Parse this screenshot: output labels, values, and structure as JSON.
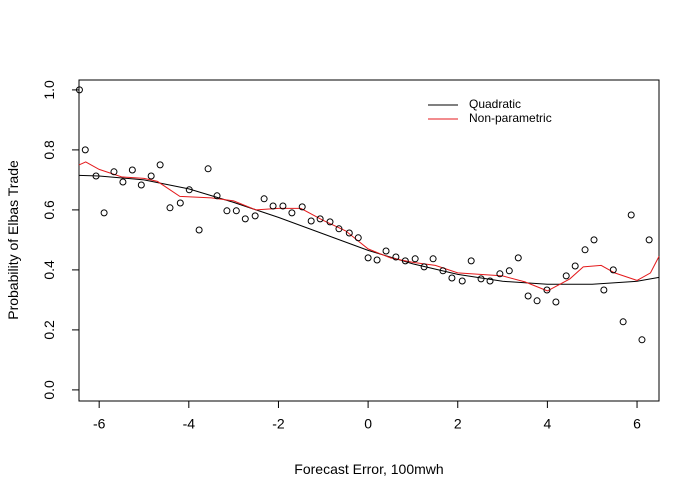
{
  "chart_data": {
    "type": "scatter",
    "x_label": "Forecast Error, 100mwh",
    "y_label": "Probability of Elbas Trade",
    "xlim": [
      -6.45,
      6.49
    ],
    "ylim": [
      -0.037,
      1.033
    ],
    "xticks": [
      -6,
      -4,
      -2,
      0,
      2,
      4,
      6
    ],
    "yticks": [
      {
        "value": 0,
        "label": "0.0"
      },
      {
        "value": 0.2,
        "label": "0.2"
      },
      {
        "value": 0.4,
        "label": "0.4"
      },
      {
        "value": 0.6,
        "label": "0.6"
      },
      {
        "value": 0.8,
        "label": "0.8"
      },
      {
        "value": 1,
        "label": "1.0"
      }
    ],
    "legend": "top-right",
    "points": {
      "color": "#000000",
      "x": [
        -6.44,
        -6.31,
        -6.07,
        -5.89,
        -5.67,
        -5.47,
        -5.26,
        -5.06,
        -4.84,
        -4.64,
        -4.42,
        -4.19,
        -3.99,
        -3.77,
        -3.57,
        -3.37,
        -3.15,
        -2.94,
        -2.74,
        -2.52,
        -2.32,
        -2.12,
        -1.9,
        -1.7,
        -1.47,
        -1.27,
        -1.07,
        -0.85,
        -0.65,
        -0.42,
        -0.22,
        0,
        0.2,
        0.4,
        0.62,
        0.83,
        1.05,
        1.25,
        1.45,
        1.67,
        1.87,
        2.1,
        2.3,
        2.52,
        2.72,
        2.94,
        3.15,
        3.35,
        3.57,
        3.77,
        3.99,
        4.19,
        4.42,
        4.62,
        4.84,
        5.04,
        5.26,
        5.47,
        5.69,
        5.87,
        6.11,
        6.27
      ],
      "values": [
        1.0,
        0.8,
        0.713,
        0.59,
        0.727,
        0.693,
        0.733,
        0.683,
        0.713,
        0.75,
        0.607,
        0.623,
        0.667,
        0.533,
        0.737,
        0.647,
        0.597,
        0.597,
        0.57,
        0.58,
        0.637,
        0.613,
        0.613,
        0.59,
        0.61,
        0.563,
        0.57,
        0.56,
        0.537,
        0.523,
        0.507,
        0.44,
        0.433,
        0.463,
        0.443,
        0.43,
        0.437,
        0.41,
        0.437,
        0.397,
        0.373,
        0.363,
        0.43,
        0.37,
        0.363,
        0.387,
        0.397,
        0.44,
        0.313,
        0.297,
        0.333,
        0.293,
        0.38,
        0.413,
        0.467,
        0.5,
        0.333,
        0.4,
        0.227,
        0.583,
        0.167,
        0.5
      ]
    },
    "series": [
      {
        "name": "Quadratic",
        "color": "#000000",
        "x": [
          -6.45,
          -6,
          -5,
          -4,
          -3,
          -2,
          -1,
          0,
          1,
          2,
          3,
          4,
          5,
          6,
          6.49
        ],
        "values": [
          0.715,
          0.713,
          0.7,
          0.67,
          0.625,
          0.575,
          0.52,
          0.465,
          0.42,
          0.385,
          0.362,
          0.352,
          0.352,
          0.362,
          0.375
        ]
      },
      {
        "name": "Non-parametric",
        "color": "#e41a1c",
        "x": [
          -6.45,
          -6.3,
          -6,
          -5.5,
          -5,
          -4.7,
          -4.2,
          -3.5,
          -3,
          -2.5,
          -2,
          -1.5,
          -1,
          -0.5,
          0,
          0.5,
          1,
          1.5,
          2,
          2.5,
          3,
          3.5,
          4,
          4.5,
          4.8,
          5.2,
          5.5,
          6,
          6.3,
          6.49
        ],
        "values": [
          0.75,
          0.76,
          0.735,
          0.71,
          0.705,
          0.695,
          0.645,
          0.64,
          0.63,
          0.6,
          0.605,
          0.605,
          0.565,
          0.53,
          0.47,
          0.44,
          0.425,
          0.415,
          0.39,
          0.385,
          0.38,
          0.36,
          0.33,
          0.37,
          0.41,
          0.415,
          0.39,
          0.365,
          0.39,
          0.445
        ]
      }
    ]
  }
}
